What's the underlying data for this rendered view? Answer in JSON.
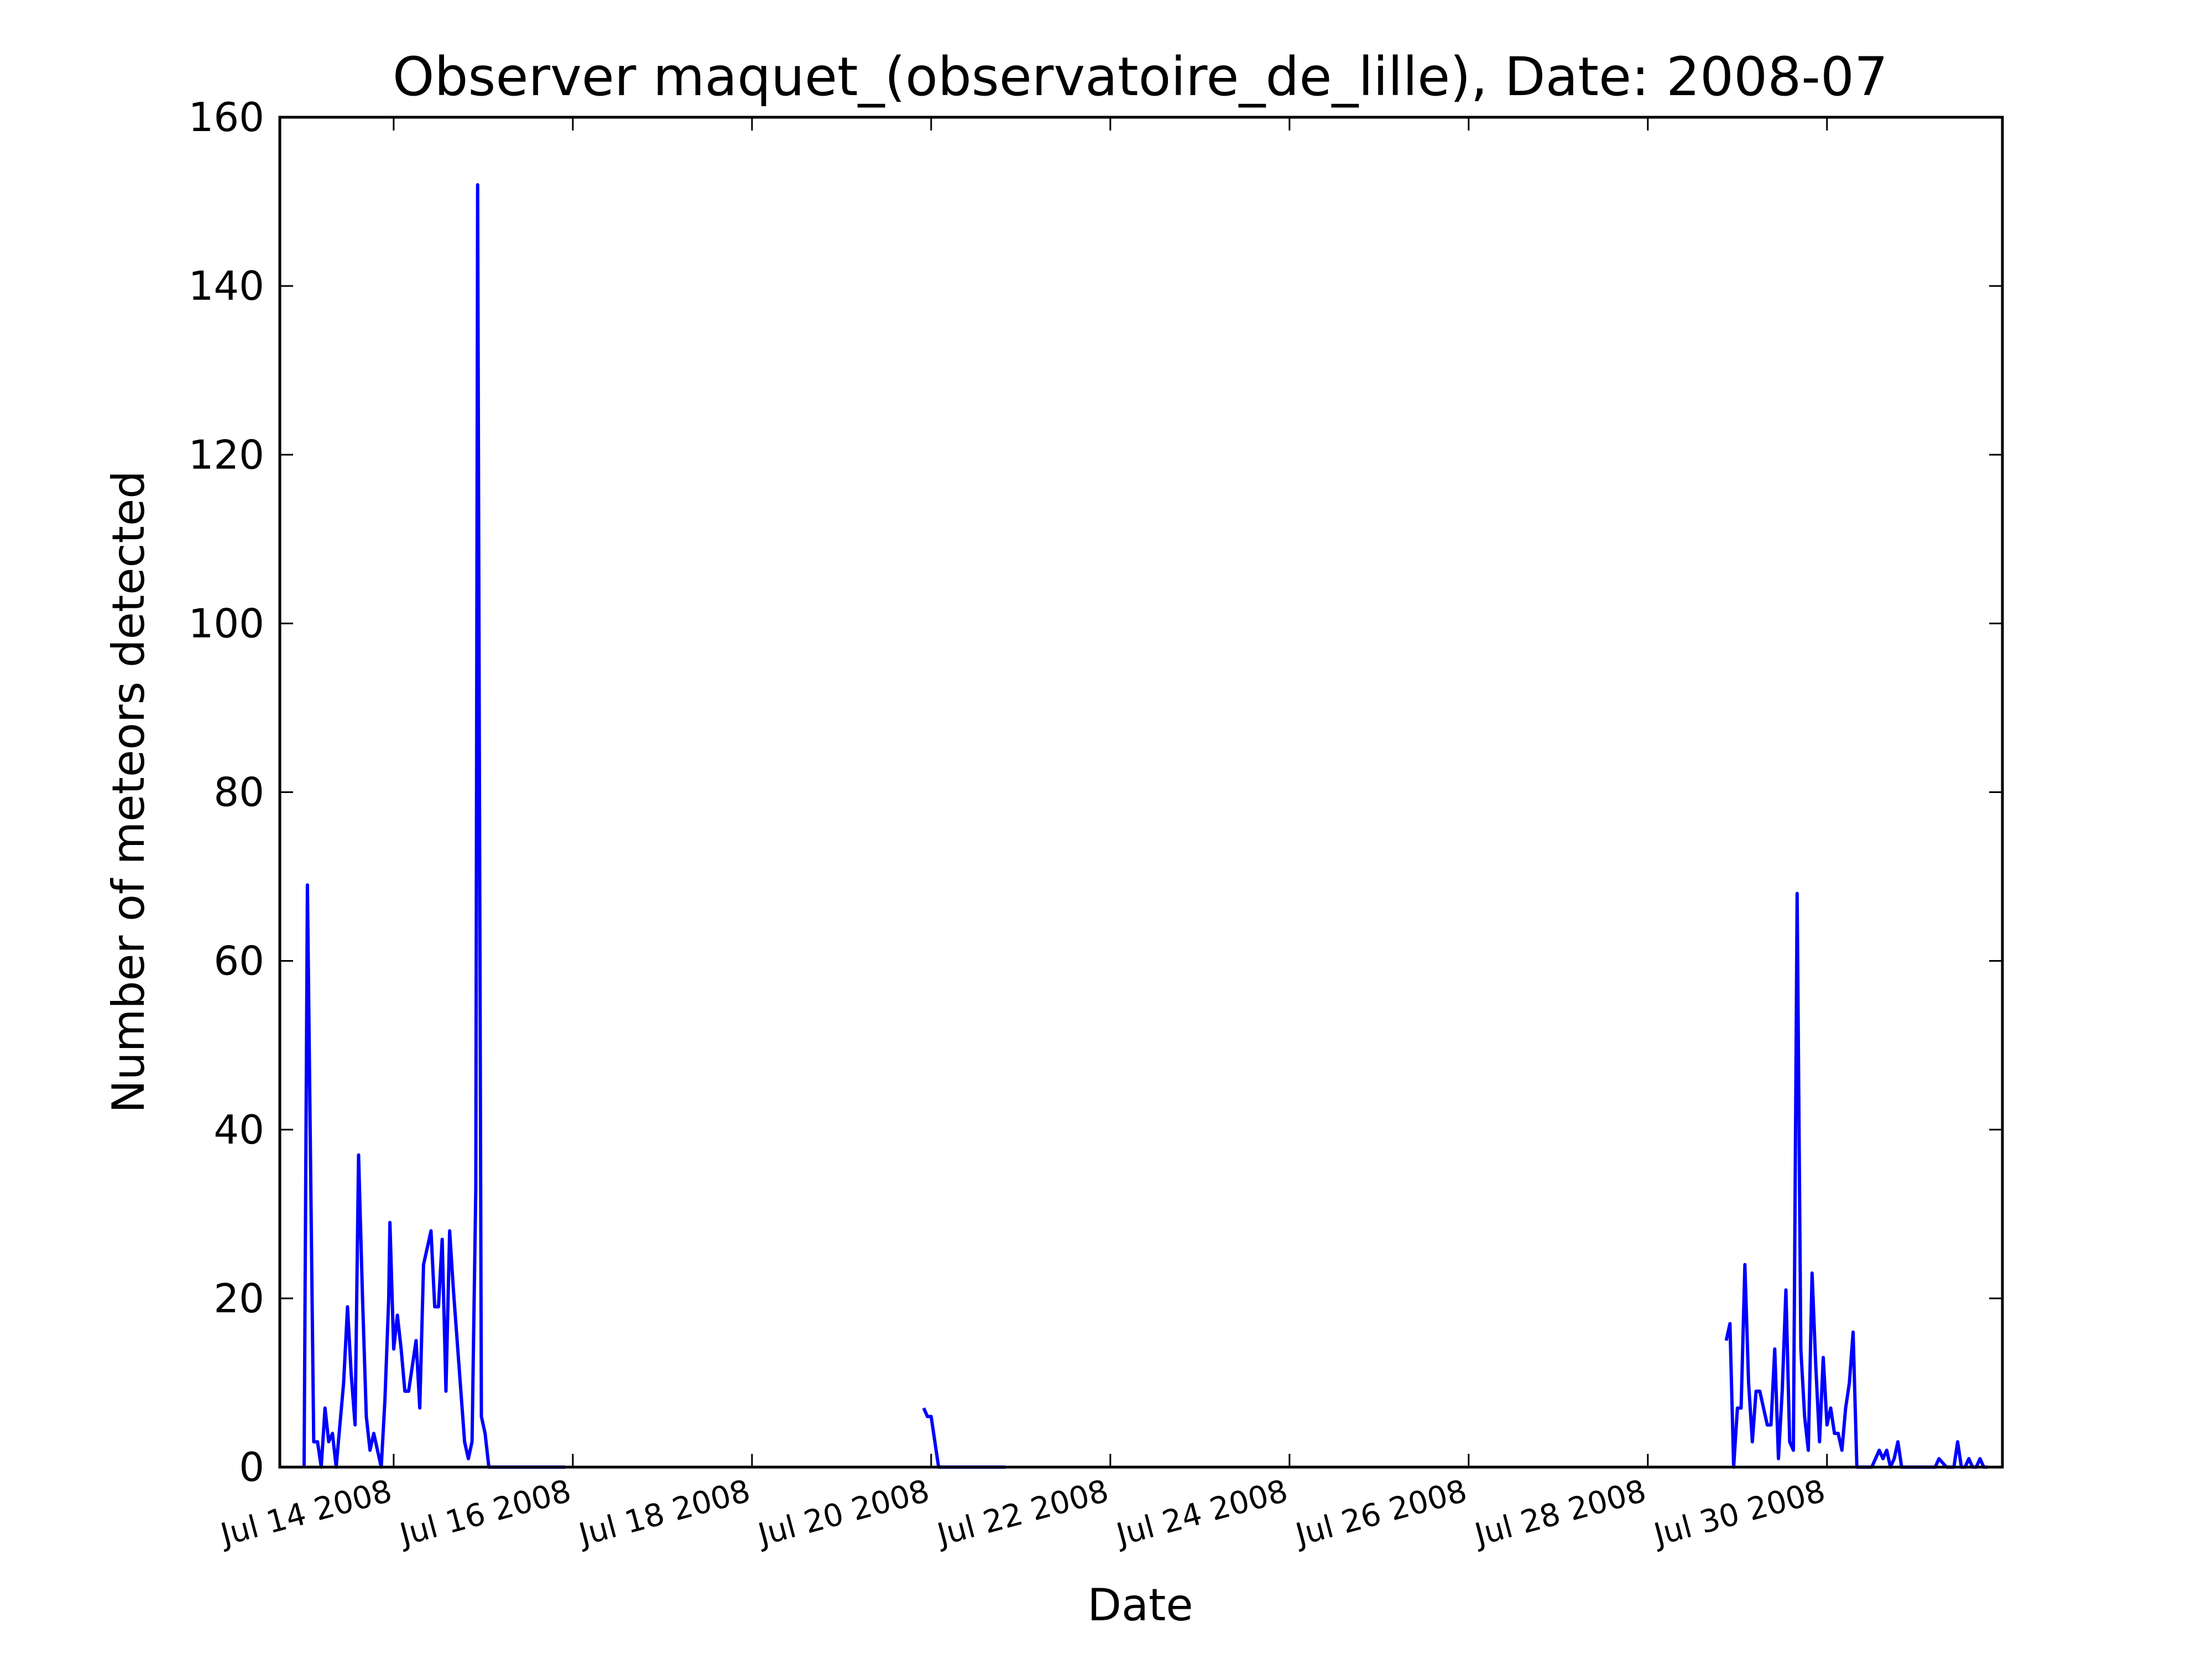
{
  "chart_data": {
    "type": "line",
    "title": "Observer maquet_(observatoire_de_lille), Date: 2008-07",
    "xlabel": "Date",
    "ylabel": "Number of meteors detected",
    "ylim": [
      0,
      160
    ],
    "yticks": [
      0,
      20,
      40,
      60,
      80,
      100,
      120,
      140,
      160
    ],
    "xlim": [
      "2008-07-12 17:30",
      "2008-07-31 23:00"
    ],
    "xticks": [
      {
        "date": "2008-07-14",
        "label": "Jul 14 2008"
      },
      {
        "date": "2008-07-16",
        "label": "Jul 16 2008"
      },
      {
        "date": "2008-07-18",
        "label": "Jul 18 2008"
      },
      {
        "date": "2008-07-20",
        "label": "Jul 20 2008"
      },
      {
        "date": "2008-07-22",
        "label": "Jul 22 2008"
      },
      {
        "date": "2008-07-24",
        "label": "Jul 24 2008"
      },
      {
        "date": "2008-07-26",
        "label": "Jul 26 2008"
      },
      {
        "date": "2008-07-28",
        "label": "Jul 28 2008"
      },
      {
        "date": "2008-07-30",
        "label": "Jul 30 2008"
      }
    ],
    "grid": false,
    "line_color": "#0000ff",
    "series": [
      {
        "points": [
          [
            "2008-07-13 00:00",
            0
          ],
          [
            "2008-07-13 00:54",
            69
          ],
          [
            "2008-07-13 02:35",
            3
          ],
          [
            "2008-07-13 03:36",
            3
          ],
          [
            "2008-07-13 04:36",
            0
          ],
          [
            "2008-07-13 05:36",
            7
          ],
          [
            "2008-07-13 06:36",
            3
          ],
          [
            "2008-07-13 07:36",
            4
          ],
          [
            "2008-07-13 08:36",
            0
          ],
          [
            "2008-07-13 10:36",
            10
          ],
          [
            "2008-07-13 11:38",
            19
          ],
          [
            "2008-07-13 12:38",
            11
          ],
          [
            "2008-07-13 13:40",
            5
          ],
          [
            "2008-07-13 14:36",
            37
          ],
          [
            "2008-07-13 15:40",
            20
          ],
          [
            "2008-07-13 16:40",
            6
          ],
          [
            "2008-07-13 17:40",
            2
          ],
          [
            "2008-07-13 18:40",
            4
          ],
          [
            "2008-07-13 19:40",
            2
          ],
          [
            "2008-07-13 20:40",
            0
          ],
          [
            "2008-07-13 21:40",
            8
          ],
          [
            "2008-07-13 22:40",
            20
          ],
          [
            "2008-07-13 23:00",
            29
          ],
          [
            "2008-07-14 00:00",
            14
          ],
          [
            "2008-07-14 01:00",
            18
          ],
          [
            "2008-07-14 02:00",
            14
          ],
          [
            "2008-07-14 03:00",
            9
          ],
          [
            "2008-07-14 04:00",
            9
          ],
          [
            "2008-07-14 06:00",
            15
          ],
          [
            "2008-07-14 07:00",
            7
          ],
          [
            "2008-07-14 08:00",
            24
          ],
          [
            "2008-07-14 10:00",
            28
          ],
          [
            "2008-07-14 11:00",
            19
          ],
          [
            "2008-07-14 12:00",
            19
          ],
          [
            "2008-07-14 13:00",
            27
          ],
          [
            "2008-07-14 14:00",
            9
          ],
          [
            "2008-07-14 15:00",
            28
          ],
          [
            "2008-07-14 16:00",
            21
          ],
          [
            "2008-07-14 18:00",
            9
          ],
          [
            "2008-07-14 19:00",
            3
          ],
          [
            "2008-07-14 20:00",
            1
          ],
          [
            "2008-07-14 21:00",
            3
          ],
          [
            "2008-07-14 22:00",
            33
          ],
          [
            "2008-07-14 22:30",
            152
          ],
          [
            "2008-07-14 23:30",
            6
          ],
          [
            "2008-07-15 00:30",
            4
          ],
          [
            "2008-07-15 01:30",
            0
          ],
          [
            "2008-07-15 22:00",
            0
          ]
        ]
      },
      {
        "points": [
          [
            "2008-07-19 22:00",
            7
          ],
          [
            "2008-07-19 23:00",
            6
          ],
          [
            "2008-07-20 00:00",
            6
          ],
          [
            "2008-07-20 02:00",
            0
          ],
          [
            "2008-07-20 20:00",
            0
          ]
        ]
      },
      {
        "points": [
          [
            "2008-07-28 21:00",
            15
          ],
          [
            "2008-07-28 22:00",
            17
          ],
          [
            "2008-07-28 23:00",
            0
          ],
          [
            "2008-07-29 00:00",
            7
          ],
          [
            "2008-07-29 01:00",
            7
          ],
          [
            "2008-07-29 02:00",
            24
          ],
          [
            "2008-07-29 03:00",
            10
          ],
          [
            "2008-07-29 04:00",
            3
          ],
          [
            "2008-07-29 05:00",
            9
          ],
          [
            "2008-07-29 06:00",
            9
          ],
          [
            "2008-07-29 07:00",
            7
          ],
          [
            "2008-07-29 08:00",
            5
          ],
          [
            "2008-07-29 09:00",
            5
          ],
          [
            "2008-07-29 10:00",
            14
          ],
          [
            "2008-07-29 11:00",
            1
          ],
          [
            "2008-07-29 12:00",
            9
          ],
          [
            "2008-07-29 13:00",
            21
          ],
          [
            "2008-07-29 14:00",
            3
          ],
          [
            "2008-07-29 15:00",
            2
          ],
          [
            "2008-07-29 16:00",
            68
          ],
          [
            "2008-07-29 17:00",
            14
          ],
          [
            "2008-07-29 18:00",
            6
          ],
          [
            "2008-07-29 19:00",
            2
          ],
          [
            "2008-07-29 20:00",
            23
          ],
          [
            "2008-07-29 21:00",
            12
          ],
          [
            "2008-07-29 22:00",
            3
          ],
          [
            "2008-07-29 23:00",
            13
          ],
          [
            "2008-07-30 00:00",
            5
          ],
          [
            "2008-07-30 01:00",
            7
          ],
          [
            "2008-07-30 02:00",
            4
          ],
          [
            "2008-07-30 03:00",
            4
          ],
          [
            "2008-07-30 04:00",
            2
          ],
          [
            "2008-07-30 05:00",
            7
          ],
          [
            "2008-07-30 06:00",
            10
          ],
          [
            "2008-07-30 07:00",
            16
          ],
          [
            "2008-07-30 08:00",
            0
          ],
          [
            "2008-07-30 11:00",
            0
          ],
          [
            "2008-07-30 12:00",
            0
          ],
          [
            "2008-07-30 14:00",
            2
          ],
          [
            "2008-07-30 15:00",
            1
          ],
          [
            "2008-07-30 16:00",
            2
          ],
          [
            "2008-07-30 17:00",
            0
          ],
          [
            "2008-07-30 18:00",
            1
          ],
          [
            "2008-07-30 19:00",
            3
          ],
          [
            "2008-07-30 20:00",
            0
          ],
          [
            "2008-07-31 00:00",
            0
          ],
          [
            "2008-07-31 05:00",
            0
          ],
          [
            "2008-07-31 06:00",
            1
          ],
          [
            "2008-07-31 07:00",
            0.5
          ],
          [
            "2008-07-31 08:00",
            0
          ],
          [
            "2008-07-31 09:00",
            0
          ],
          [
            "2008-07-31 10:00",
            0
          ],
          [
            "2008-07-31 11:00",
            3
          ],
          [
            "2008-07-31 12:00",
            0
          ],
          [
            "2008-07-31 13:00",
            0
          ],
          [
            "2008-07-31 14:00",
            1
          ],
          [
            "2008-07-31 15:00",
            0
          ],
          [
            "2008-07-31 16:00",
            0
          ],
          [
            "2008-07-31 17:00",
            1
          ],
          [
            "2008-07-31 18:00",
            0
          ],
          [
            "2008-07-31 19:00",
            0
          ]
        ]
      }
    ]
  }
}
